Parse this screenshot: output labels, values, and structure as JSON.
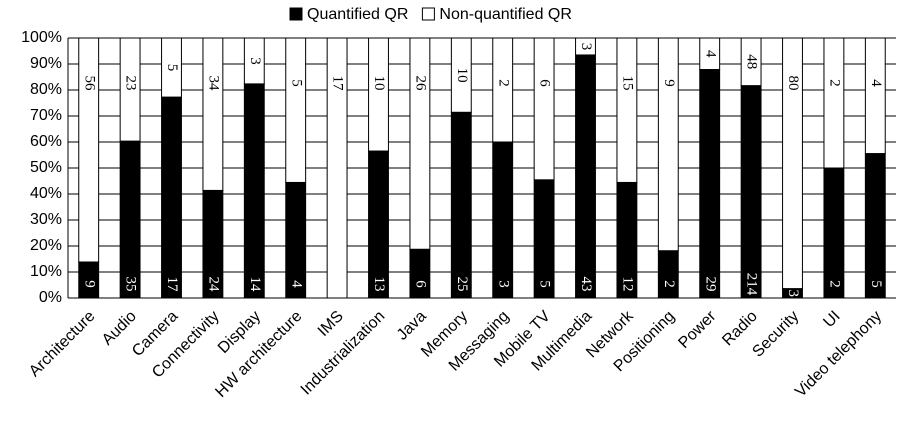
{
  "chart_data": {
    "type": "percent_stacked_bar",
    "categories": [
      "Architecture",
      "Audio",
      "Camera",
      "Connectivity",
      "Display",
      "HW architecture",
      "IMS",
      "Industrialization",
      "Java",
      "Memory",
      "Messaging",
      "Mobile TV",
      "Multimedia",
      "Network",
      "Positioning",
      "Power",
      "Radio",
      "Security",
      "UI",
      "Video telephony"
    ],
    "series": [
      {
        "name": "Quantified QR",
        "color": "#000000",
        "values": [
          9,
          35,
          17,
          24,
          14,
          4,
          0,
          13,
          6,
          25,
          3,
          5,
          43,
          12,
          2,
          29,
          214,
          3,
          2,
          5
        ]
      },
      {
        "name": "Non-quantified QR",
        "color": "#ffffff",
        "values": [
          56,
          23,
          5,
          34,
          3,
          5,
          17,
          10,
          26,
          10,
          2,
          6,
          3,
          15,
          9,
          4,
          48,
          80,
          2,
          4
        ]
      }
    ],
    "ylim": [
      0,
      100
    ],
    "yticks": [
      {
        "value": 0,
        "label": "0%"
      },
      {
        "value": 10,
        "label": "10%"
      },
      {
        "value": 20,
        "label": "20%"
      },
      {
        "value": 30,
        "label": "30%"
      },
      {
        "value": 40,
        "label": "40%"
      },
      {
        "value": 50,
        "label": "50%"
      },
      {
        "value": 60,
        "label": "60%"
      },
      {
        "value": 70,
        "label": "70%"
      },
      {
        "value": 80,
        "label": "80%"
      },
      {
        "value": 90,
        "label": "90%"
      },
      {
        "value": 100,
        "label": "100%"
      }
    ],
    "grid": true,
    "legend": "top"
  }
}
